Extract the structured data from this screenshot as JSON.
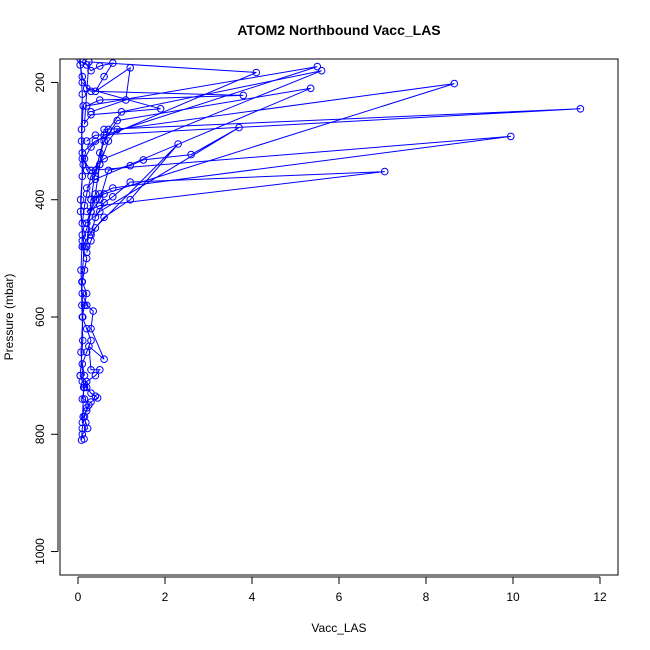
{
  "chart_data": {
    "type": "line",
    "title": "ATOM2 Northbound Vacc_LAS",
    "xlabel": "Vacc_LAS",
    "ylabel": "Pressure (mbar)",
    "xlim": [
      0,
      12
    ],
    "ylim": [
      1040,
      160
    ],
    "y_reversed": true,
    "x_ticks": [
      0,
      2,
      4,
      6,
      8,
      10,
      12
    ],
    "y_ticks": [
      200,
      400,
      600,
      800,
      1000
    ],
    "colors": {
      "series": "#0000ff",
      "axis": "#000000",
      "background": "#ffffff"
    },
    "marker": "open-circle",
    "series": [
      {
        "x": [
          0.1,
          0.2,
          0.3,
          0.5,
          0.8,
          0.6,
          0.4,
          1.2,
          1.1,
          0.3
        ],
        "y": [
          165,
          170,
          180,
          172,
          167,
          190,
          215,
          175,
          230,
          250
        ]
      },
      {
        "x": [
          0.05,
          0.1,
          0.2,
          1.9,
          0.3,
          0.15,
          0.25,
          4.1,
          0.4,
          0.1,
          0.2
        ],
        "y": [
          170,
          190,
          210,
          245,
          255,
          270,
          165,
          183,
          300,
          320,
          350
        ]
      },
      {
        "x": [
          0.1,
          0.3,
          3.8,
          0.5,
          0.2,
          5.5,
          0.6,
          0.3,
          0.15
        ],
        "y": [
          200,
          215,
          222,
          230,
          240,
          173,
          290,
          310,
          330
        ]
      },
      {
        "x": [
          0.2,
          0.4,
          11.55,
          0.6,
          0.5,
          0.3,
          0.2,
          0.15,
          0.1
        ],
        "y": [
          300,
          290,
          245,
          280,
          340,
          360,
          390,
          410,
          440
        ]
      },
      {
        "x": [
          0.1,
          0.3,
          9.95,
          0.8,
          0.5,
          0.4,
          0.3,
          0.2,
          0.1
        ],
        "y": [
          330,
          350,
          292,
          380,
          390,
          400,
          420,
          450,
          470
        ]
      },
      {
        "x": [
          0.2,
          0.5,
          7.05,
          1.2,
          0.8,
          0.6,
          0.4,
          0.3
        ],
        "y": [
          420,
          410,
          352,
          370,
          395,
          405,
          430,
          460
        ]
      },
      {
        "x": [
          0.3,
          0.6,
          8.65,
          0.9,
          0.7,
          0.5,
          0.4,
          0.2
        ],
        "y": [
          400,
          390,
          202,
          280,
          300,
          340,
          390,
          440
        ]
      },
      {
        "x": [
          0.2,
          0.4,
          5.35,
          0.9,
          0.6,
          0.4,
          0.3,
          0.2
        ],
        "y": [
          380,
          365,
          210,
          265,
          300,
          350,
          400,
          480
        ]
      },
      {
        "x": [
          0.3,
          0.6,
          5.6,
          1.0,
          0.7,
          0.5,
          0.4
        ],
        "y": [
          350,
          330,
          180,
          250,
          280,
          320,
          360
        ]
      },
      {
        "x": [
          0.2,
          0.5,
          3.7,
          2.6,
          1.5,
          1.2,
          0.7,
          0.5,
          0.3
        ],
        "y": [
          440,
          420,
          277,
          323,
          332,
          342,
          350,
          400,
          420
        ]
      },
      {
        "x": [
          0.1,
          0.3,
          2.3,
          1.2,
          0.6,
          0.4,
          0.3,
          0.2
        ],
        "y": [
          480,
          455,
          305,
          400,
          430,
          448,
          470,
          490
        ]
      },
      {
        "x": [
          0.1,
          0.2,
          0.15,
          0.1,
          0.2,
          0.15,
          0.1,
          0.2,
          0.3,
          0.2,
          0.1,
          0.15
        ],
        "y": [
          480,
          500,
          520,
          540,
          560,
          580,
          600,
          620,
          640,
          660,
          680,
          700
        ]
      },
      {
        "x": [
          0.1,
          0.2,
          0.35,
          0.3,
          0.6,
          0.25,
          0.3,
          0.5,
          0.4,
          0.2,
          0.15,
          0.1
        ],
        "y": [
          560,
          580,
          590,
          620,
          672,
          650,
          690,
          690,
          700,
          710,
          720,
          740
        ]
      },
      {
        "x": [
          0.05,
          0.1,
          0.15,
          0.2,
          0.3,
          0.4,
          0.45,
          0.3,
          0.2,
          0.15,
          0.1,
          0.08
        ],
        "y": [
          700,
          710,
          715,
          720,
          730,
          735,
          738,
          745,
          755,
          770,
          790,
          810
        ]
      },
      {
        "x": [
          0.05,
          0.1,
          0.08,
          0.12,
          0.06,
          0.1,
          0.07,
          0.09,
          0.11,
          0.05
        ],
        "y": [
          160,
          220,
          280,
          340,
          400,
          460,
          520,
          580,
          640,
          700
        ]
      },
      {
        "x": [
          0.12,
          0.08,
          0.1,
          0.06,
          0.14,
          0.09,
          0.11,
          0.07,
          0.13,
          0.1
        ],
        "y": [
          240,
          300,
          360,
          420,
          480,
          540,
          600,
          660,
          720,
          780
        ]
      },
      {
        "x": [
          0.15,
          0.25,
          0.2,
          0.12,
          0.18,
          0.22,
          0.1,
          0.14
        ],
        "y": [
          740,
          750,
          760,
          770,
          780,
          790,
          800,
          808
        ]
      }
    ]
  }
}
